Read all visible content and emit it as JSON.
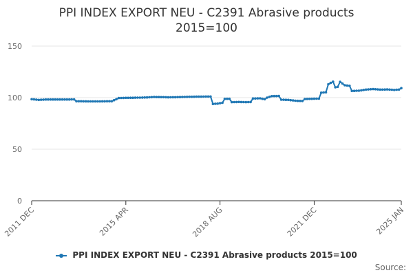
{
  "colors": {
    "series": "#1f77b4",
    "grid": "#e6e6e6",
    "axis": "#333333",
    "text": "#666666"
  },
  "credits": "Source:",
  "chart_data": {
    "type": "line",
    "title_lines": [
      "PPI INDEX EXPORT NEU - C2391 Abrasive products",
      "2015=100"
    ],
    "xlabel": "",
    "ylabel": "",
    "ylim": [
      0,
      150
    ],
    "yticks": [
      0,
      50,
      100,
      150
    ],
    "grid": true,
    "legend_position": "bottom",
    "x_start": "2011-12",
    "x_end": "2025-01",
    "xtick_labels": [
      {
        "label": "2011 DEC",
        "month": "2011-12"
      },
      {
        "label": "2015 APR",
        "month": "2015-04"
      },
      {
        "label": "2018 AUG",
        "month": "2018-08"
      },
      {
        "label": "2021 DEC",
        "month": "2021-12"
      },
      {
        "label": "2025 JAN",
        "month": "2025-01"
      }
    ],
    "series": [
      {
        "name": "PPI INDEX EXPORT NEU - C2391 Abrasive products 2015=100",
        "color": "#1f77b4",
        "data": [
          [
            "2011-12",
            98.5
          ],
          [
            "2012-03",
            97.8
          ],
          [
            "2012-06",
            98.2
          ],
          [
            "2012-09",
            98.2
          ],
          [
            "2012-12",
            98.2
          ],
          [
            "2013-03",
            98.2
          ],
          [
            "2013-06",
            98.3
          ],
          [
            "2013-07",
            96.5
          ],
          [
            "2013-10",
            96.4
          ],
          [
            "2014-01",
            96.3
          ],
          [
            "2014-04",
            96.3
          ],
          [
            "2014-07",
            96.4
          ],
          [
            "2014-10",
            96.5
          ],
          [
            "2015-01",
            99.6
          ],
          [
            "2015-04",
            99.8
          ],
          [
            "2015-07",
            99.9
          ],
          [
            "2015-10",
            100.0
          ],
          [
            "2016-01",
            100.2
          ],
          [
            "2016-04",
            100.6
          ],
          [
            "2016-07",
            100.5
          ],
          [
            "2016-10",
            100.3
          ],
          [
            "2017-01",
            100.4
          ],
          [
            "2017-04",
            100.6
          ],
          [
            "2017-07",
            100.8
          ],
          [
            "2017-10",
            100.9
          ],
          [
            "2018-01",
            101.0
          ],
          [
            "2018-04",
            101.1
          ],
          [
            "2018-05",
            93.9
          ],
          [
            "2018-07",
            94.2
          ],
          [
            "2018-09",
            95.0
          ],
          [
            "2018-10",
            98.8
          ],
          [
            "2018-12",
            98.9
          ],
          [
            "2019-01",
            95.6
          ],
          [
            "2019-04",
            95.8
          ],
          [
            "2019-07",
            95.6
          ],
          [
            "2019-09",
            95.7
          ],
          [
            "2019-10",
            99.2
          ],
          [
            "2020-01",
            99.3
          ],
          [
            "2020-03",
            98.5
          ],
          [
            "2020-04",
            100.0
          ],
          [
            "2020-06",
            101.5
          ],
          [
            "2020-09",
            101.6
          ],
          [
            "2020-10",
            98.0
          ],
          [
            "2021-01",
            97.8
          ],
          [
            "2021-04",
            97.0
          ],
          [
            "2021-07",
            96.7
          ],
          [
            "2021-08",
            98.6
          ],
          [
            "2021-11",
            98.9
          ],
          [
            "2022-02",
            99.0
          ],
          [
            "2022-03",
            104.8
          ],
          [
            "2022-05",
            105.2
          ],
          [
            "2022-06",
            113.0
          ],
          [
            "2022-08",
            115.5
          ],
          [
            "2022-09",
            110.0
          ],
          [
            "2022-10",
            110.5
          ],
          [
            "2022-11",
            115.3
          ],
          [
            "2023-01",
            112.0
          ],
          [
            "2023-03",
            111.5
          ],
          [
            "2023-04",
            106.5
          ],
          [
            "2023-07",
            106.7
          ],
          [
            "2023-10",
            107.8
          ],
          [
            "2024-01",
            108.3
          ],
          [
            "2024-04",
            107.8
          ],
          [
            "2024-07",
            107.9
          ],
          [
            "2024-10",
            107.5
          ],
          [
            "2024-12",
            107.8
          ],
          [
            "2025-01",
            109.2
          ]
        ]
      }
    ]
  }
}
